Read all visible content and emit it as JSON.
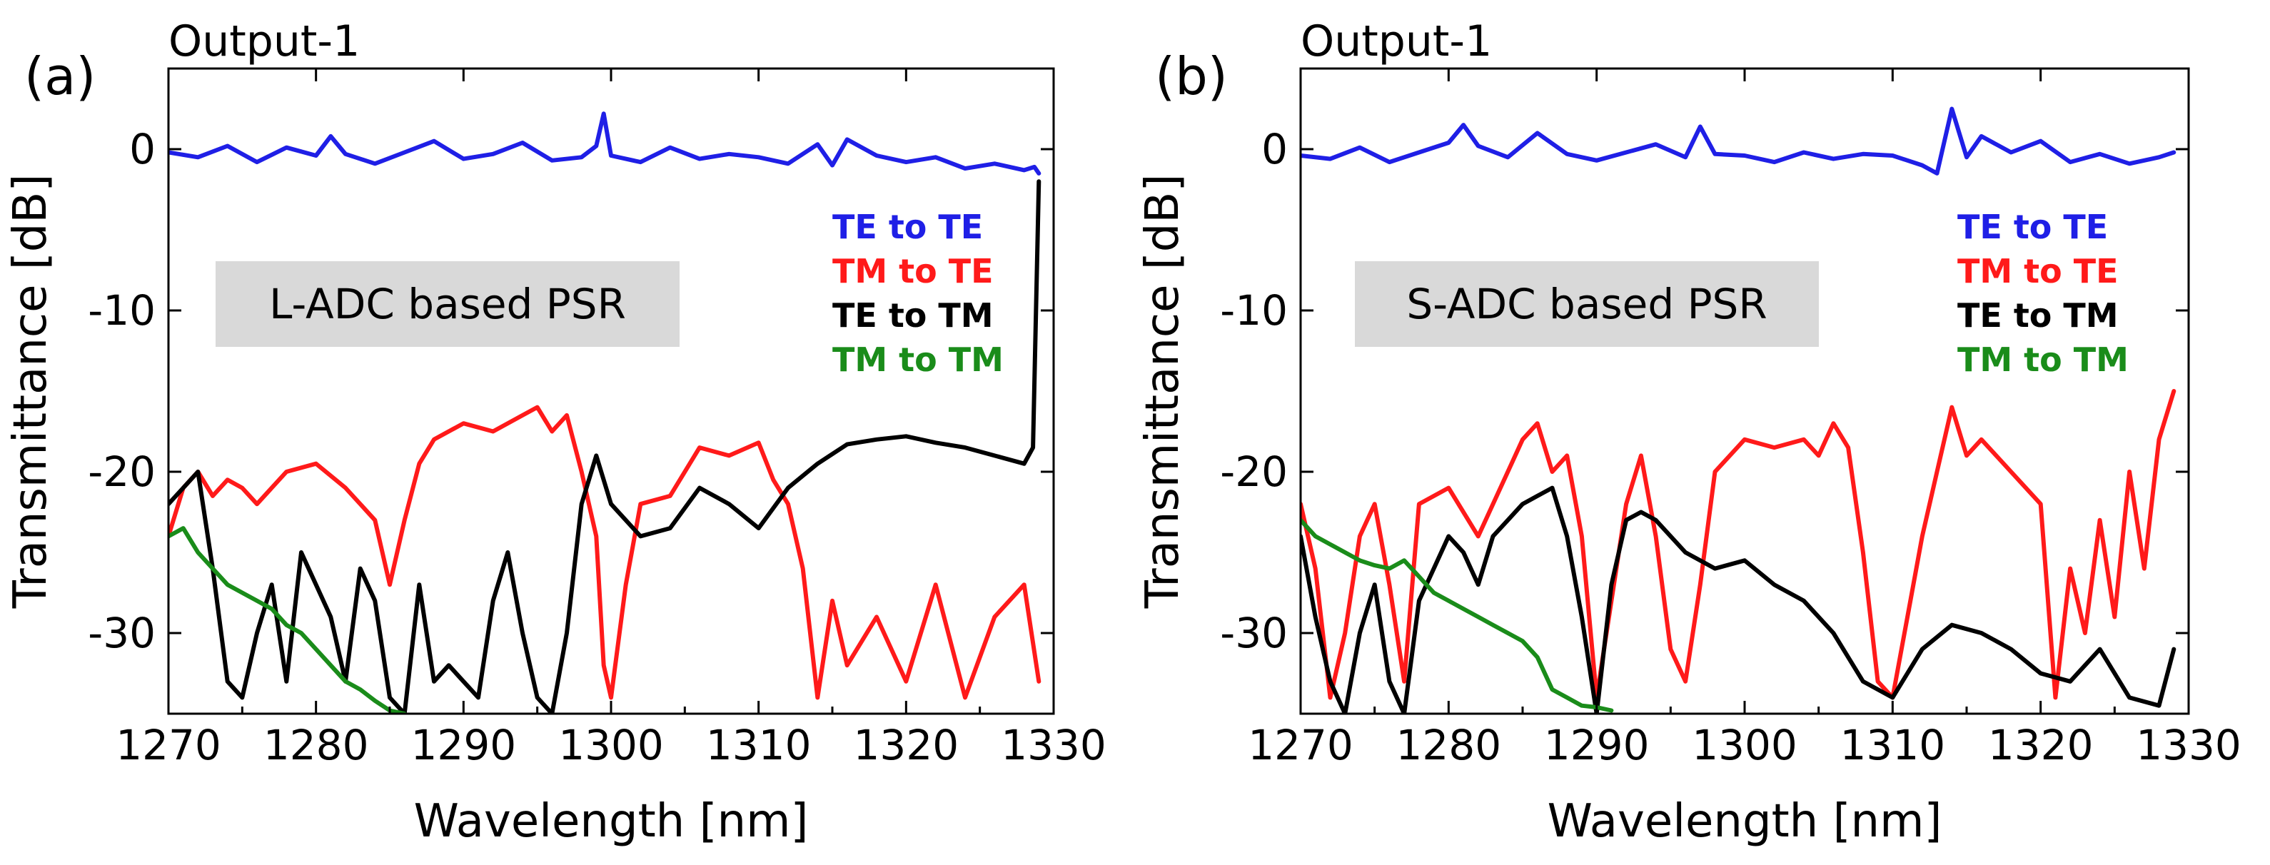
{
  "chart_data": [
    {
      "type": "line",
      "panel_label": "(a)",
      "subtitle": "Output-1",
      "annotation": "L-ADC based PSR",
      "xlabel": "Wavelength [nm]",
      "ylabel": "Transmittance [dB]",
      "xlim": [
        1270,
        1330
      ],
      "ylim": [
        -35,
        5
      ],
      "x_ticks": [
        "1270",
        "1280",
        "1290",
        "1300",
        "1310",
        "1320",
        "1330"
      ],
      "y_ticks": [
        "0",
        "-10",
        "-20",
        "-30"
      ],
      "x_tick_values": [
        1270,
        1280,
        1290,
        1300,
        1310,
        1320,
        1330
      ],
      "y_tick_values": [
        0,
        -10,
        -20,
        -30
      ],
      "grid": false,
      "legend_position": "right",
      "series": [
        {
          "name": "TE to TE",
          "color": "#1f1fe6",
          "x": [
            1270,
            1272,
            1274,
            1276,
            1278,
            1280,
            1281,
            1282,
            1284,
            1286,
            1288,
            1290,
            1292,
            1294,
            1296,
            1298,
            1299,
            1299.5,
            1300,
            1302,
            1304,
            1306,
            1308,
            1310,
            1312,
            1314,
            1315,
            1316,
            1318,
            1320,
            1322,
            1324,
            1326,
            1328,
            1328.7,
            1329
          ],
          "values": [
            -0.2,
            -0.5,
            0.2,
            -0.8,
            0.1,
            -0.4,
            0.8,
            -0.3,
            -0.9,
            -0.2,
            0.5,
            -0.6,
            -0.3,
            0.4,
            -0.7,
            -0.5,
            0.2,
            2.2,
            -0.4,
            -0.8,
            0.1,
            -0.6,
            -0.3,
            -0.5,
            -0.9,
            0.3,
            -1.0,
            0.6,
            -0.4,
            -0.8,
            -0.5,
            -1.2,
            -0.9,
            -1.3,
            -1.1,
            -1.5
          ]
        },
        {
          "name": "TM to TE",
          "color": "#ff1a1a",
          "x": [
            1270,
            1271,
            1272,
            1273,
            1274,
            1275,
            1276,
            1278,
            1280,
            1282,
            1284,
            1285,
            1286,
            1287,
            1288,
            1290,
            1292,
            1294,
            1295,
            1296,
            1297,
            1298,
            1299,
            1299.5,
            1300,
            1301,
            1302,
            1304,
            1306,
            1308,
            1310,
            1311,
            1312,
            1313,
            1314,
            1315,
            1316,
            1318,
            1320,
            1322,
            1324,
            1326,
            1328,
            1329
          ],
          "values": [
            -24,
            -21,
            -20,
            -21.5,
            -20.5,
            -21,
            -22,
            -20,
            -19.5,
            -21,
            -23,
            -27,
            -23,
            -19.5,
            -18,
            -17,
            -17.5,
            -16.5,
            -16,
            -17.5,
            -16.5,
            -20,
            -24,
            -32,
            -34,
            -27,
            -22,
            -21.5,
            -18.5,
            -19,
            -18.2,
            -20.5,
            -22,
            -26,
            -34,
            -28,
            -32,
            -29,
            -33,
            -27,
            -34,
            -29,
            -27,
            -33
          ]
        },
        {
          "name": "TE to TM",
          "color": "#000000",
          "x": [
            1270,
            1271,
            1272,
            1273,
            1274,
            1275,
            1276,
            1277,
            1278,
            1279,
            1280,
            1281,
            1282,
            1283,
            1284,
            1285,
            1286,
            1287,
            1288,
            1289,
            1290,
            1291,
            1292,
            1293,
            1294,
            1295,
            1296,
            1297,
            1298,
            1299,
            1300,
            1302,
            1304,
            1306,
            1308,
            1310,
            1312,
            1314,
            1316,
            1318,
            1320,
            1322,
            1324,
            1326,
            1328,
            1328.6,
            1329
          ],
          "values": [
            -22,
            -21,
            -20,
            -26,
            -33,
            -34,
            -30,
            -27,
            -33,
            -25,
            -27,
            -29,
            -33,
            -26,
            -28,
            -34,
            -35,
            -27,
            -33,
            -32,
            -33,
            -34,
            -28,
            -25,
            -30,
            -34,
            -35,
            -30,
            -22,
            -19,
            -22,
            -24,
            -23.5,
            -21,
            -22,
            -23.5,
            -21,
            -19.5,
            -18.3,
            -18,
            -17.8,
            -18.2,
            -18.5,
            -19,
            -19.5,
            -18.5,
            -2
          ]
        },
        {
          "name": "TM to TM",
          "color": "#1a8c1a",
          "x": [
            1270,
            1271,
            1272,
            1273,
            1274,
            1275,
            1276,
            1277,
            1278,
            1279,
            1280,
            1281,
            1282,
            1283,
            1284,
            1285,
            1286
          ],
          "values": [
            -24,
            -23.5,
            -25,
            -26,
            -27,
            -27.5,
            -28,
            -28.5,
            -29.5,
            -30,
            -31,
            -32,
            -33,
            -33.5,
            -34.2,
            -34.8,
            -35
          ]
        }
      ]
    },
    {
      "type": "line",
      "panel_label": "(b)",
      "subtitle": "Output-1",
      "annotation": "S-ADC based PSR",
      "xlabel": "Wavelength [nm]",
      "ylabel": "Transmittance [dB]",
      "xlim": [
        1270,
        1330
      ],
      "ylim": [
        -35,
        5
      ],
      "x_ticks": [
        "1270",
        "1280",
        "1290",
        "1300",
        "1310",
        "1320",
        "1330"
      ],
      "y_ticks": [
        "0",
        "-10",
        "-20",
        "-30"
      ],
      "x_tick_values": [
        1270,
        1280,
        1290,
        1300,
        1310,
        1320,
        1330
      ],
      "y_tick_values": [
        0,
        -10,
        -20,
        -30
      ],
      "grid": false,
      "legend_position": "right",
      "series": [
        {
          "name": "TE to TE",
          "color": "#1f1fe6",
          "x": [
            1270,
            1272,
            1274,
            1276,
            1278,
            1280,
            1281,
            1282,
            1284,
            1286,
            1288,
            1290,
            1292,
            1294,
            1296,
            1297,
            1298,
            1300,
            1302,
            1304,
            1306,
            1308,
            1310,
            1312,
            1313,
            1314,
            1315,
            1316,
            1318,
            1320,
            1322,
            1324,
            1326,
            1328,
            1329
          ],
          "values": [
            -0.4,
            -0.6,
            0.1,
            -0.8,
            -0.2,
            0.4,
            1.5,
            0.2,
            -0.5,
            1.0,
            -0.3,
            -0.7,
            -0.2,
            0.3,
            -0.5,
            1.4,
            -0.3,
            -0.4,
            -0.8,
            -0.2,
            -0.6,
            -0.3,
            -0.4,
            -1.0,
            -1.5,
            2.5,
            -0.5,
            0.8,
            -0.2,
            0.5,
            -0.8,
            -0.3,
            -0.9,
            -0.5,
            -0.2
          ]
        },
        {
          "name": "TM to TE",
          "color": "#ff1a1a",
          "x": [
            1270,
            1271,
            1272,
            1273,
            1274,
            1275,
            1276,
            1277,
            1278,
            1280,
            1282,
            1284,
            1285,
            1286,
            1287,
            1288,
            1289,
            1290,
            1291,
            1292,
            1293,
            1294,
            1295,
            1296,
            1297,
            1298,
            1300,
            1302,
            1304,
            1305,
            1306,
            1307,
            1308,
            1309,
            1310,
            1311,
            1312,
            1313,
            1314,
            1315,
            1316,
            1318,
            1320,
            1321,
            1322,
            1323,
            1324,
            1325,
            1326,
            1327,
            1328,
            1329
          ],
          "values": [
            -22,
            -26,
            -34,
            -30,
            -24,
            -22,
            -27,
            -33,
            -22,
            -21,
            -24,
            -20,
            -18,
            -17,
            -20,
            -19,
            -24,
            -34,
            -28,
            -22,
            -19,
            -24,
            -31,
            -33,
            -27,
            -20,
            -18,
            -18.5,
            -18,
            -19,
            -17,
            -18.5,
            -25,
            -33,
            -34,
            -29,
            -24,
            -20,
            -16,
            -19,
            -18,
            -20,
            -22,
            -34,
            -26,
            -30,
            -23,
            -29,
            -20,
            -26,
            -18,
            -15
          ]
        },
        {
          "name": "TE to TM",
          "color": "#000000",
          "x": [
            1270,
            1271,
            1272,
            1273,
            1274,
            1275,
            1276,
            1277,
            1278,
            1279,
            1280,
            1281,
            1282,
            1283,
            1284,
            1285,
            1286,
            1287,
            1288,
            1289,
            1290,
            1291,
            1292,
            1293,
            1294,
            1296,
            1298,
            1300,
            1302,
            1304,
            1306,
            1308,
            1310,
            1312,
            1314,
            1316,
            1318,
            1320,
            1322,
            1324,
            1326,
            1328,
            1329
          ],
          "values": [
            -24,
            -29,
            -33,
            -35,
            -30,
            -27,
            -33,
            -35,
            -28,
            -26,
            -24,
            -25,
            -27,
            -24,
            -23,
            -22,
            -21.5,
            -21,
            -24,
            -29,
            -35,
            -27,
            -23,
            -22.5,
            -23,
            -25,
            -26,
            -25.5,
            -27,
            -28,
            -30,
            -33,
            -34,
            -31,
            -29.5,
            -30,
            -31,
            -32.5,
            -33,
            -31,
            -34,
            -34.5,
            -31
          ]
        },
        {
          "name": "TM to TM",
          "color": "#1a8c1a",
          "x": [
            1270,
            1271,
            1272,
            1273,
            1274,
            1275,
            1276,
            1277,
            1278,
            1279,
            1280,
            1281,
            1282,
            1283,
            1284,
            1285,
            1286,
            1287,
            1288,
            1289,
            1290,
            1291
          ],
          "values": [
            -23,
            -24,
            -24.5,
            -25,
            -25.5,
            -25.8,
            -26,
            -25.5,
            -26.5,
            -27.5,
            -28,
            -28.5,
            -29,
            -29.5,
            -30,
            -30.5,
            -31.5,
            -33.5,
            -34,
            -34.5,
            -34.6,
            -34.8
          ]
        }
      ]
    }
  ]
}
